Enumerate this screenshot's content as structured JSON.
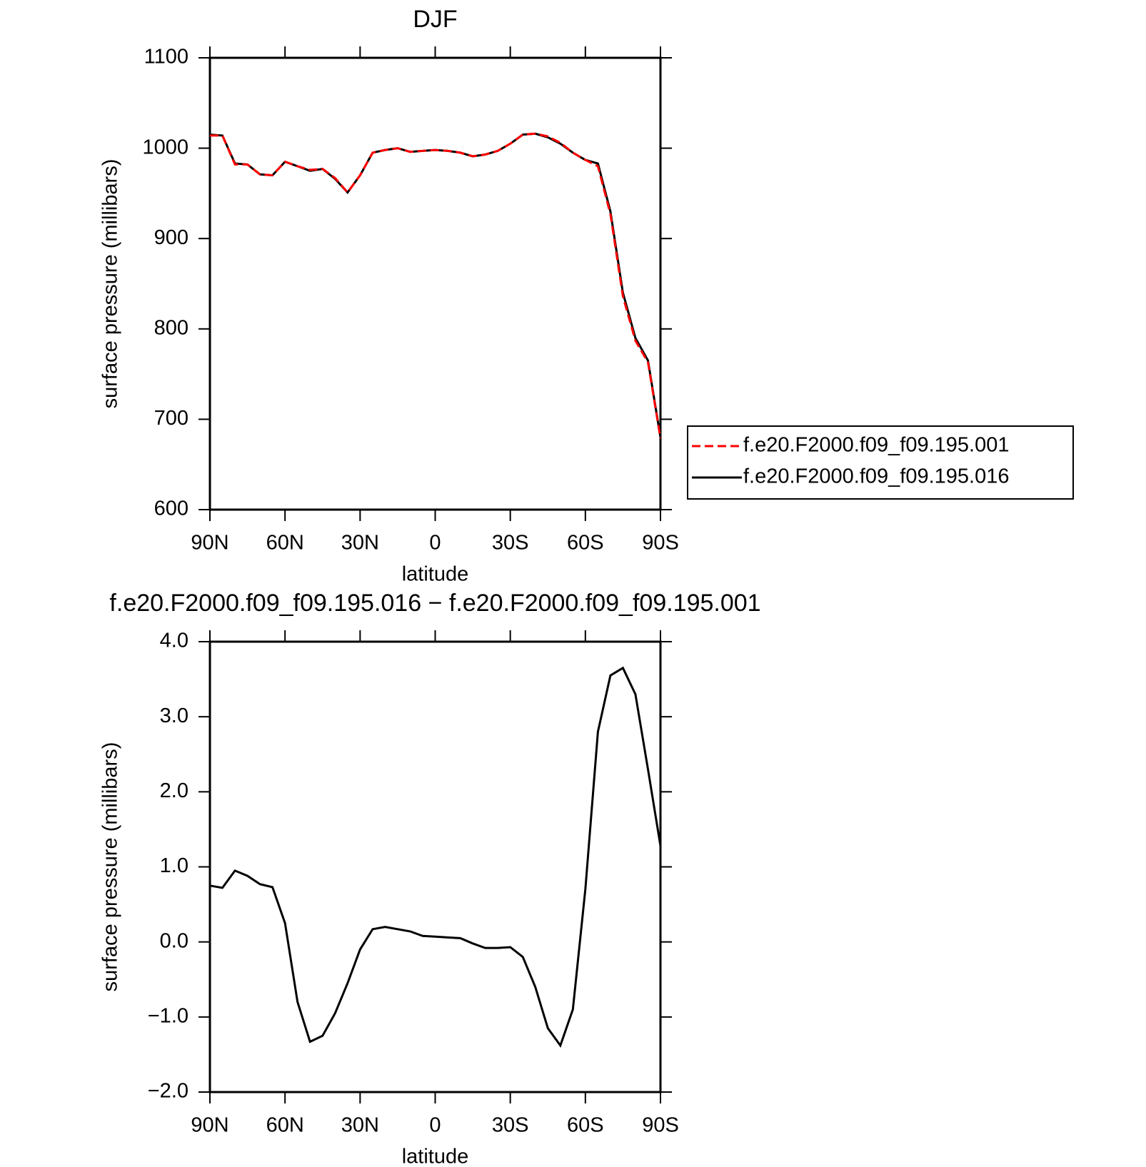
{
  "chart_data": [
    {
      "type": "line",
      "title": "DJF",
      "xlabel": "latitude",
      "ylabel": "surface pressure (millibars)",
      "x": [
        90,
        85,
        80,
        75,
        70,
        65,
        60,
        55,
        50,
        45,
        40,
        35,
        30,
        25,
        20,
        15,
        10,
        5,
        0,
        -5,
        -10,
        -15,
        -20,
        -25,
        -30,
        -35,
        -40,
        -45,
        -50,
        -55,
        -60,
        -65,
        -70,
        -75,
        -80,
        -85,
        -90
      ],
      "xlim": [
        90,
        -90
      ],
      "xticks": [
        {
          "value": 90,
          "label": "90N"
        },
        {
          "value": 60,
          "label": "60N"
        },
        {
          "value": 30,
          "label": "30N"
        },
        0,
        {
          "value": -30,
          "label": "30S"
        },
        {
          "value": -60,
          "label": "60S"
        },
        {
          "value": -90,
          "label": "90S"
        }
      ],
      "ylim": [
        600,
        1100
      ],
      "yticks": [
        600,
        700,
        800,
        900,
        1000,
        1100
      ],
      "legend": "right",
      "series": [
        {
          "name": "f.e20.F2000.f09_f09.195.001",
          "color": "#ff0000",
          "line_style": "dashed",
          "values": [
            1014,
            1014,
            982,
            982,
            971,
            970,
            985,
            980,
            976,
            977,
            967,
            951,
            970,
            995,
            998,
            1000,
            996,
            997,
            998,
            997,
            995,
            991,
            993,
            997,
            1005,
            1015,
            1016,
            1013,
            1006,
            995,
            987,
            980,
            927,
            836,
            787,
            763,
            679
          ]
        },
        {
          "name": "f.e20.F2000.f09_f09.195.016",
          "color": "#000000",
          "line_style": "solid",
          "values": [
            1015,
            1014,
            983,
            982,
            971,
            970,
            985,
            980,
            975,
            977,
            966,
            951,
            970,
            995,
            998,
            1000,
            996,
            997,
            998,
            997,
            995,
            991,
            993,
            997,
            1005,
            1015,
            1016,
            1012,
            1005,
            995,
            987,
            983,
            930,
            840,
            790,
            765,
            680
          ]
        }
      ]
    },
    {
      "type": "line",
      "title": "f.e20.F2000.f09_f09.195.016 − f.e20.F2000.f09_f09.195.001",
      "xlabel": "latitude",
      "ylabel": "surface pressure (millibars)",
      "x": [
        90,
        85,
        80,
        75,
        70,
        65,
        60,
        55,
        50,
        45,
        40,
        35,
        30,
        25,
        20,
        15,
        10,
        5,
        0,
        -5,
        -10,
        -15,
        -20,
        -25,
        -30,
        -35,
        -40,
        -45,
        -50,
        -55,
        -60,
        -65,
        -70,
        -75,
        -80,
        -85,
        -90
      ],
      "xlim": [
        90,
        -90
      ],
      "xticks": [
        {
          "value": 90,
          "label": "90N"
        },
        {
          "value": 60,
          "label": "60N"
        },
        {
          "value": 30,
          "label": "30N"
        },
        0,
        {
          "value": -30,
          "label": "30S"
        },
        {
          "value": -60,
          "label": "60S"
        },
        {
          "value": -90,
          "label": "90S"
        }
      ],
      "ylim": [
        -2,
        4
      ],
      "yticks": [
        {
          "value": -2,
          "label": "−2.0"
        },
        {
          "value": -1,
          "label": "−1.0"
        },
        {
          "value": 0,
          "label": "0.0"
        },
        {
          "value": 1,
          "label": "1.0"
        },
        {
          "value": 2,
          "label": "2.0"
        },
        {
          "value": 3,
          "label": "3.0"
        },
        {
          "value": 4,
          "label": "4.0"
        }
      ],
      "series": [
        {
          "color": "#000000",
          "line_style": "solid",
          "values": [
            0.75,
            0.72,
            0.95,
            0.88,
            0.77,
            0.73,
            0.25,
            -0.8,
            -1.33,
            -1.25,
            -0.95,
            -0.55,
            -0.1,
            0.17,
            0.2,
            0.17,
            0.14,
            0.08,
            0.07,
            0.06,
            0.05,
            -0.02,
            -0.08,
            -0.08,
            -0.07,
            -0.2,
            -0.6,
            -1.15,
            -1.38,
            -0.9,
            0.7,
            2.8,
            3.55,
            3.65,
            3.3,
            2.3,
            1.28
          ]
        }
      ]
    }
  ]
}
